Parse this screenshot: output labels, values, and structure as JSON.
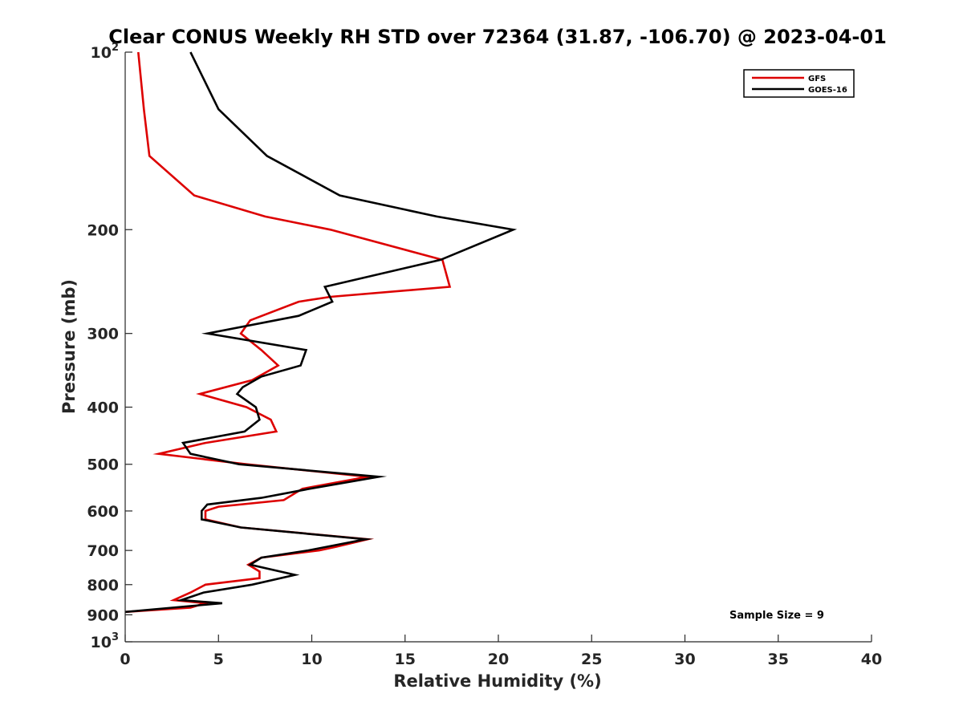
{
  "chart_data": {
    "type": "line",
    "title": "Clear CONUS Weekly RH STD over 72364 (31.87, -106.70) @ 2023-04-01",
    "xlabel": "Relative Humidity (%)",
    "ylabel": "Pressure (mb)",
    "xlim": [
      0,
      40
    ],
    "ylim": [
      100,
      1000
    ],
    "y_scale": "log",
    "y_reversed": true,
    "x_ticks": [
      0,
      5,
      10,
      15,
      20,
      25,
      30,
      35,
      40
    ],
    "x_tick_labels": [
      "0",
      "5",
      "10",
      "15",
      "20",
      "25",
      "30",
      "35",
      "40"
    ],
    "y_ticks": [
      100,
      200,
      300,
      400,
      500,
      600,
      700,
      800,
      900,
      1000
    ],
    "y_tick_labels": [
      {
        "base": "10",
        "exp": "2"
      },
      {
        "base": "200",
        "exp": ""
      },
      {
        "base": "300",
        "exp": ""
      },
      {
        "base": "400",
        "exp": ""
      },
      {
        "base": "500",
        "exp": ""
      },
      {
        "base": "600",
        "exp": ""
      },
      {
        "base": "700",
        "exp": ""
      },
      {
        "base": "800",
        "exp": ""
      },
      {
        "base": "900",
        "exp": ""
      },
      {
        "base": "10",
        "exp": "3"
      }
    ],
    "grid": false,
    "legend_position": "top-right",
    "annotation": "Sample Size = 9",
    "series": [
      {
        "name": "GFS",
        "color": "#dd0000",
        "points": [
          [
            0.7,
            100
          ],
          [
            1.0,
            125
          ],
          [
            1.3,
            150
          ],
          [
            3.7,
            175
          ],
          [
            7.5,
            190
          ],
          [
            11.0,
            200
          ],
          [
            17.0,
            225
          ],
          [
            17.4,
            250
          ],
          [
            11.0,
            260
          ],
          [
            9.3,
            265
          ],
          [
            6.7,
            285
          ],
          [
            6.2,
            300
          ],
          [
            7.3,
            320
          ],
          [
            8.2,
            340
          ],
          [
            6.8,
            360
          ],
          [
            4.0,
            380
          ],
          [
            6.5,
            400
          ],
          [
            7.8,
            420
          ],
          [
            8.1,
            440
          ],
          [
            4.3,
            460
          ],
          [
            1.8,
            480
          ],
          [
            6.5,
            500
          ],
          [
            13.0,
            525
          ],
          [
            9.5,
            550
          ],
          [
            8.5,
            575
          ],
          [
            5.0,
            590
          ],
          [
            4.3,
            600
          ],
          [
            4.3,
            620
          ],
          [
            6.2,
            640
          ],
          [
            13.0,
            670
          ],
          [
            11.3,
            690
          ],
          [
            10.4,
            700
          ],
          [
            7.3,
            720
          ],
          [
            6.6,
            740
          ],
          [
            7.2,
            760
          ],
          [
            7.2,
            780
          ],
          [
            4.3,
            800
          ],
          [
            3.5,
            825
          ],
          [
            2.6,
            850
          ],
          [
            4.3,
            860
          ],
          [
            3.5,
            875
          ],
          [
            0.0,
            890
          ]
        ]
      },
      {
        "name": "GOES-16",
        "color": "#000000",
        "points": [
          [
            3.5,
            100
          ],
          [
            5.0,
            125
          ],
          [
            7.6,
            150
          ],
          [
            11.5,
            175
          ],
          [
            16.7,
            190
          ],
          [
            20.8,
            200
          ],
          [
            16.9,
            225
          ],
          [
            10.7,
            250
          ],
          [
            11.1,
            265
          ],
          [
            9.3,
            280
          ],
          [
            4.4,
            300
          ],
          [
            9.7,
            320
          ],
          [
            9.4,
            340
          ],
          [
            7.3,
            355
          ],
          [
            6.3,
            370
          ],
          [
            6.0,
            380
          ],
          [
            7.0,
            400
          ],
          [
            7.2,
            420
          ],
          [
            6.4,
            440
          ],
          [
            3.1,
            460
          ],
          [
            3.5,
            480
          ],
          [
            6.1,
            500
          ],
          [
            13.6,
            525
          ],
          [
            9.9,
            550
          ],
          [
            7.3,
            570
          ],
          [
            4.4,
            585
          ],
          [
            4.1,
            600
          ],
          [
            4.1,
            620
          ],
          [
            6.2,
            640
          ],
          [
            12.9,
            670
          ],
          [
            10.8,
            690
          ],
          [
            9.8,
            700
          ],
          [
            7.3,
            720
          ],
          [
            6.7,
            740
          ],
          [
            9.1,
            770
          ],
          [
            6.8,
            800
          ],
          [
            4.2,
            825
          ],
          [
            3.0,
            850
          ],
          [
            5.2,
            860
          ],
          [
            0.0,
            890
          ]
        ]
      }
    ]
  }
}
